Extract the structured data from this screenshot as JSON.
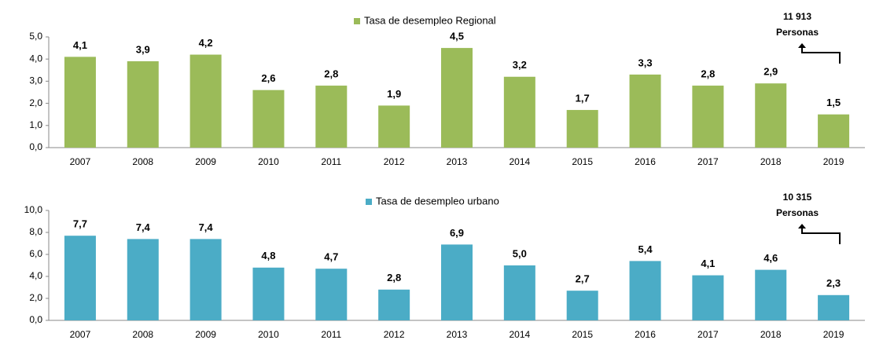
{
  "chart_data": [
    {
      "type": "bar",
      "legend": "Tasa de desempleo Regional",
      "color": "#9bbb59",
      "categories": [
        "2007",
        "2008",
        "2009",
        "2010",
        "2011",
        "2012",
        "2013",
        "2014",
        "2015",
        "2016",
        "2017",
        "2018",
        "2019"
      ],
      "values": [
        4.1,
        3.9,
        4.2,
        2.6,
        2.8,
        1.9,
        4.5,
        3.2,
        1.7,
        3.3,
        2.8,
        2.9,
        1.5
      ],
      "value_labels": [
        "4,1",
        "3,9",
        "4,2",
        "2,6",
        "2,8",
        "1,9",
        "4,5",
        "3,2",
        "1,7",
        "3,3",
        "2,8",
        "2,9",
        "1,5"
      ],
      "ylim": [
        0,
        5
      ],
      "yticks": [
        {
          "value": 0,
          "label": "0,0"
        },
        {
          "value": 1,
          "label": "1,0"
        },
        {
          "value": 2,
          "label": "2,0"
        },
        {
          "value": 3,
          "label": "3,0"
        },
        {
          "value": 4,
          "label": "4,0"
        },
        {
          "value": 5,
          "label": "5,0"
        }
      ],
      "annotations": [
        "11 913",
        "Personas"
      ]
    },
    {
      "type": "bar",
      "legend": "Tasa de desempleo urbano",
      "color": "#4bacc6",
      "categories": [
        "2007",
        "2008",
        "2009",
        "2010",
        "2011",
        "2012",
        "2013",
        "2014",
        "2015",
        "2016",
        "2017",
        "2018",
        "2019"
      ],
      "values": [
        7.7,
        7.4,
        7.4,
        4.8,
        4.7,
        2.8,
        6.9,
        5.0,
        2.7,
        5.4,
        4.1,
        4.6,
        2.3
      ],
      "value_labels": [
        "7,7",
        "7,4",
        "7,4",
        "4,8",
        "4,7",
        "2,8",
        "6,9",
        "5,0",
        "2,7",
        "5,4",
        "4,1",
        "4,6",
        "2,3"
      ],
      "ylim": [
        0,
        10
      ],
      "yticks": [
        {
          "value": 0,
          "label": "0,0"
        },
        {
          "value": 2,
          "label": "2,0"
        },
        {
          "value": 4,
          "label": "4,0"
        },
        {
          "value": 6,
          "label": "6,0"
        },
        {
          "value": 8,
          "label": "8,0"
        },
        {
          "value": 10,
          "label": "10,0"
        }
      ],
      "annotations": [
        "10 315",
        "Personas"
      ]
    }
  ]
}
